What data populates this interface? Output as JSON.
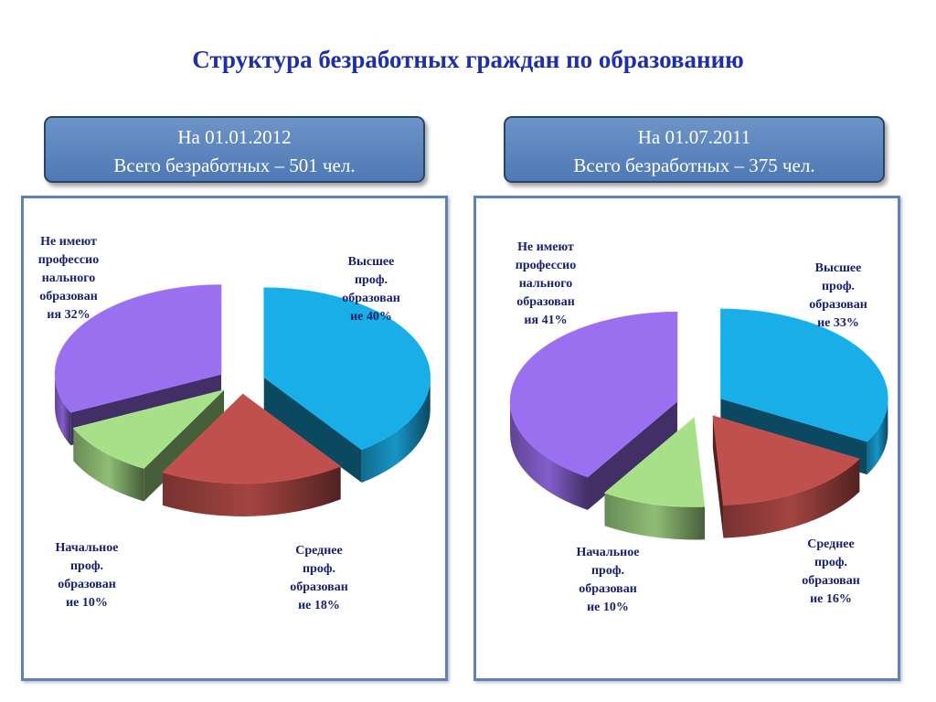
{
  "title": "Структура безработных граждан по образованию",
  "colors": {
    "higher": "#1aaee8",
    "secondary": "#c0504d",
    "primary": "#a8e08a",
    "none": "#9a6ff0"
  },
  "chart_data": [
    {
      "type": "pie",
      "header": {
        "line1": "На 01.01.2012",
        "line2": "Всего безработных – 501 чел."
      },
      "slices": [
        {
          "key": "higher",
          "label_lines": [
            "Высшее",
            "проф.",
            "образован",
            "ие 40%"
          ],
          "value": 40
        },
        {
          "key": "secondary",
          "label_lines": [
            "Среднее",
            "проф.",
            "образован",
            "ие 18%"
          ],
          "value": 18
        },
        {
          "key": "primary",
          "label_lines": [
            "Начальное",
            "проф.",
            "образован",
            "ие 10%"
          ],
          "value": 10
        },
        {
          "key": "none",
          "label_lines": [
            "Не имеют",
            "профессио",
            "нального",
            "образован",
            "ия 32%"
          ],
          "value": 32
        }
      ]
    },
    {
      "type": "pie",
      "header": {
        "line1": "На 01.07.2011",
        "line2": "Всего безработных – 375 чел."
      },
      "slices": [
        {
          "key": "higher",
          "label_lines": [
            "Высшее",
            "проф.",
            "образован",
            "ие 33%"
          ],
          "value": 33
        },
        {
          "key": "secondary",
          "label_lines": [
            "Среднее",
            "проф.",
            "образован",
            "ие 16%"
          ],
          "value": 16
        },
        {
          "key": "primary",
          "label_lines": [
            "Начальное",
            "проф.",
            "образован",
            "ие 10%"
          ],
          "value": 10
        },
        {
          "key": "none",
          "label_lines": [
            "Не имеют",
            "профессио",
            "нального",
            "образован",
            "ия 41%"
          ],
          "value": 41
        }
      ]
    }
  ]
}
